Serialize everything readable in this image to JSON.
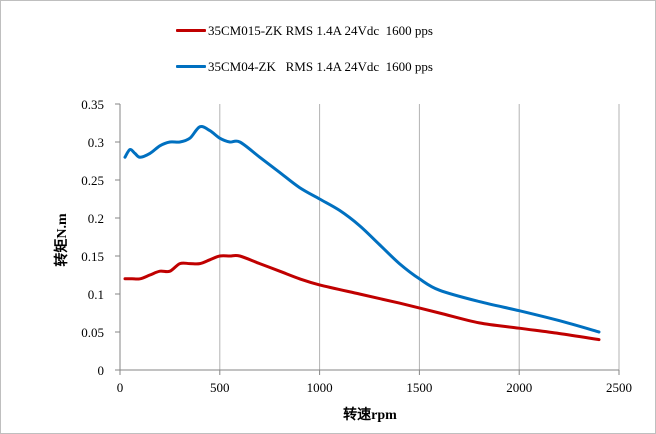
{
  "chart_data": {
    "type": "line",
    "xlabel": "转速rpm",
    "ylabel": "转矩N.m",
    "xlim": [
      0,
      2500
    ],
    "ylim": [
      0,
      0.35
    ],
    "xticks": [
      0,
      500,
      1000,
      1500,
      2000,
      2500
    ],
    "yticks": [
      0,
      0.05,
      0.1,
      0.15,
      0.2,
      0.25,
      0.3,
      0.35
    ],
    "xtick_labels": [
      "0",
      "500",
      "1000",
      "1500",
      "2000",
      "2500"
    ],
    "ytick_labels": [
      "0",
      "0.05",
      "0.1",
      "0.15",
      "0.2",
      "0.25",
      "0.3",
      "0.35"
    ],
    "grid": "vertical",
    "legend_position": "top",
    "series": [
      {
        "name": "35CM015-ZK RMS 1.4A 24Vdc  1600 pps",
        "color": "#c00000",
        "points": [
          [
            25,
            0.12
          ],
          [
            60,
            0.12
          ],
          [
            100,
            0.12
          ],
          [
            150,
            0.125
          ],
          [
            200,
            0.13
          ],
          [
            250,
            0.13
          ],
          [
            300,
            0.14
          ],
          [
            350,
            0.14
          ],
          [
            400,
            0.14
          ],
          [
            450,
            0.145
          ],
          [
            500,
            0.15
          ],
          [
            550,
            0.15
          ],
          [
            600,
            0.15
          ],
          [
            700,
            0.14
          ],
          [
            800,
            0.13
          ],
          [
            900,
            0.12
          ],
          [
            1000,
            0.112
          ],
          [
            1200,
            0.1
          ],
          [
            1400,
            0.088
          ],
          [
            1600,
            0.075
          ],
          [
            1800,
            0.062
          ],
          [
            2000,
            0.055
          ],
          [
            2200,
            0.048
          ],
          [
            2400,
            0.04
          ]
        ]
      },
      {
        "name": "35CM04-ZK   RMS 1.4A 24Vdc  1600 pps",
        "color": "#0070c0",
        "points": [
          [
            25,
            0.28
          ],
          [
            50,
            0.29
          ],
          [
            75,
            0.285
          ],
          [
            100,
            0.28
          ],
          [
            150,
            0.285
          ],
          [
            200,
            0.295
          ],
          [
            250,
            0.3
          ],
          [
            300,
            0.3
          ],
          [
            350,
            0.305
          ],
          [
            400,
            0.32
          ],
          [
            450,
            0.315
          ],
          [
            500,
            0.305
          ],
          [
            550,
            0.3
          ],
          [
            600,
            0.3
          ],
          [
            700,
            0.28
          ],
          [
            800,
            0.26
          ],
          [
            900,
            0.24
          ],
          [
            1000,
            0.225
          ],
          [
            1100,
            0.21
          ],
          [
            1200,
            0.19
          ],
          [
            1300,
            0.165
          ],
          [
            1400,
            0.14
          ],
          [
            1500,
            0.12
          ],
          [
            1600,
            0.105
          ],
          [
            1800,
            0.09
          ],
          [
            2000,
            0.078
          ],
          [
            2200,
            0.065
          ],
          [
            2400,
            0.05
          ]
        ]
      }
    ]
  }
}
